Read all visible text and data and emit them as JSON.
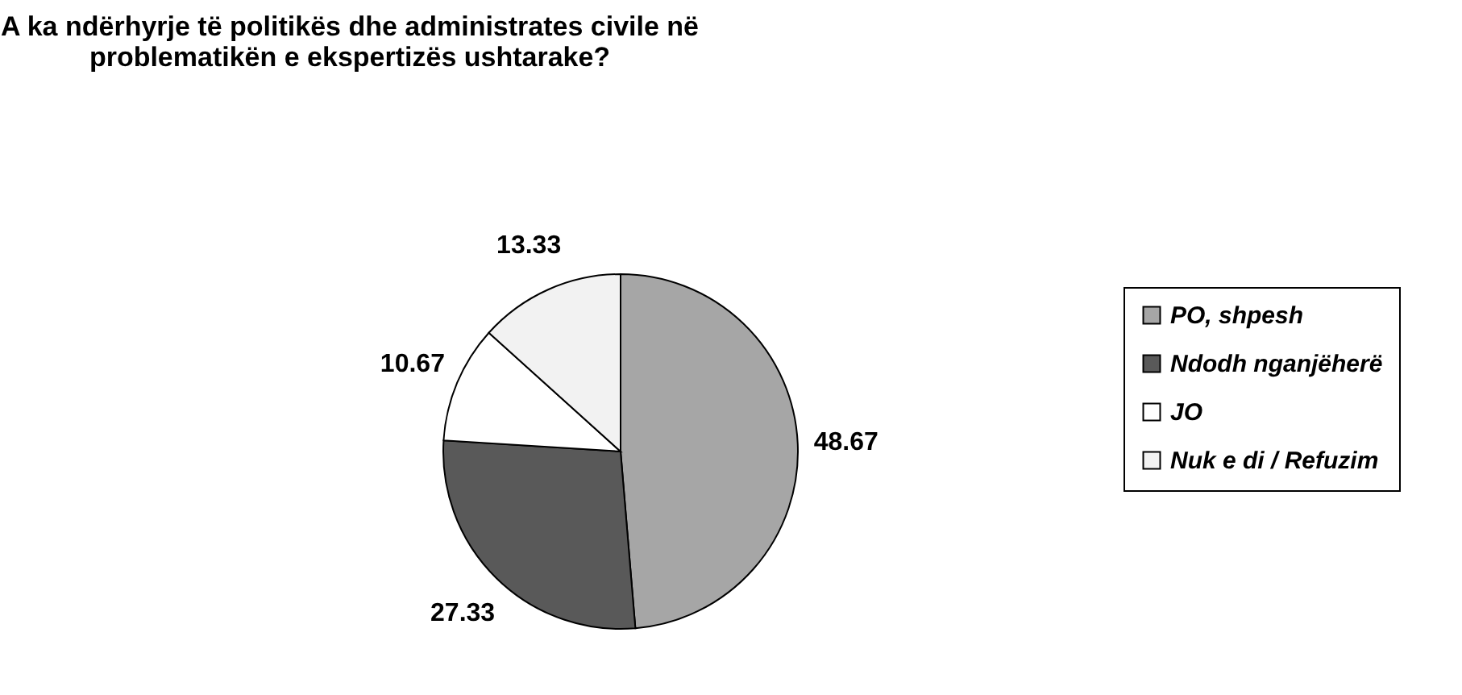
{
  "chart_data": {
    "type": "pie",
    "title": [
      "A ka ndërhyrje të politikës dhe administrates civile në",
      "problematikën e ekspertizës ushtarake?"
    ],
    "categories": [
      "PO, shpesh",
      "Ndodh nganjëherë",
      "JO",
      "Nuk e di / Refuzim"
    ],
    "values": [
      48.67,
      27.33,
      10.67,
      13.33
    ],
    "colors": [
      "#a6a6a6",
      "#595959",
      "#ffffff",
      "#f2f2f2"
    ],
    "data_labels": true,
    "legend": "right"
  }
}
